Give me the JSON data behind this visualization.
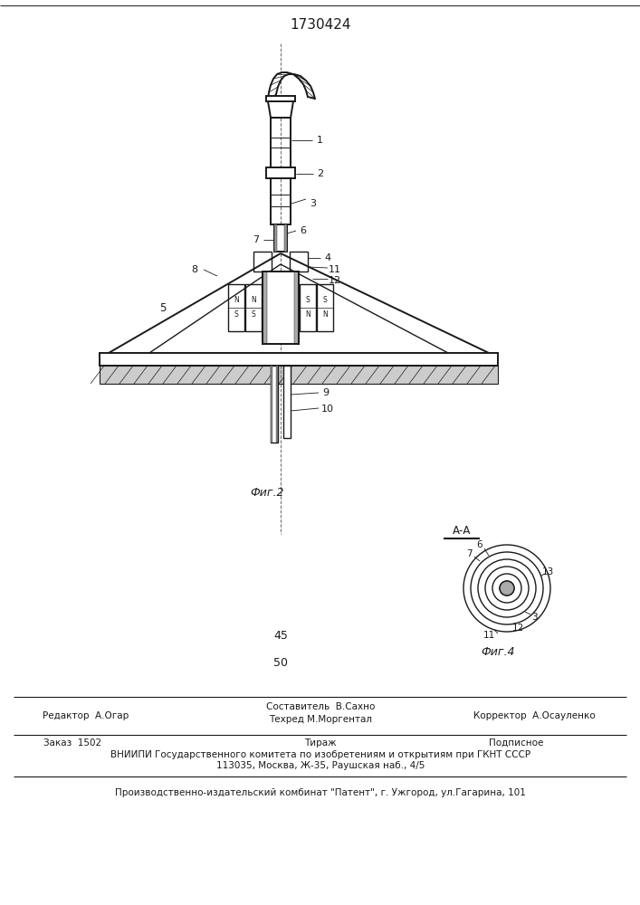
{
  "patent_number": "1730424",
  "fig2_label": "Фиг.2",
  "fig4_label": "Фиг.4",
  "aa_label": "А-А",
  "num_45": "45",
  "num_50": "50",
  "editor_line": "Редактор  А.Огар",
  "corrector_line": "Корректор  А.Осауленко",
  "order_line": "Заказ  1502",
  "tirazh_line": "Тираж",
  "podpisnoe_line": "Подписное",
  "vniip_line1": "ВНИИПИ Государственного комитета по изобретениям и открытиям при ГКНТ СССР",
  "vniip_line2": "113035, Москва, Ж-35, Раушская наб., 4/5",
  "patent_line": "Производственно-издательский комбинат \"Патент\", г. Ужгород, ул.Гагарина, 101",
  "bg_color": "#ffffff",
  "line_color": "#1a1a1a"
}
